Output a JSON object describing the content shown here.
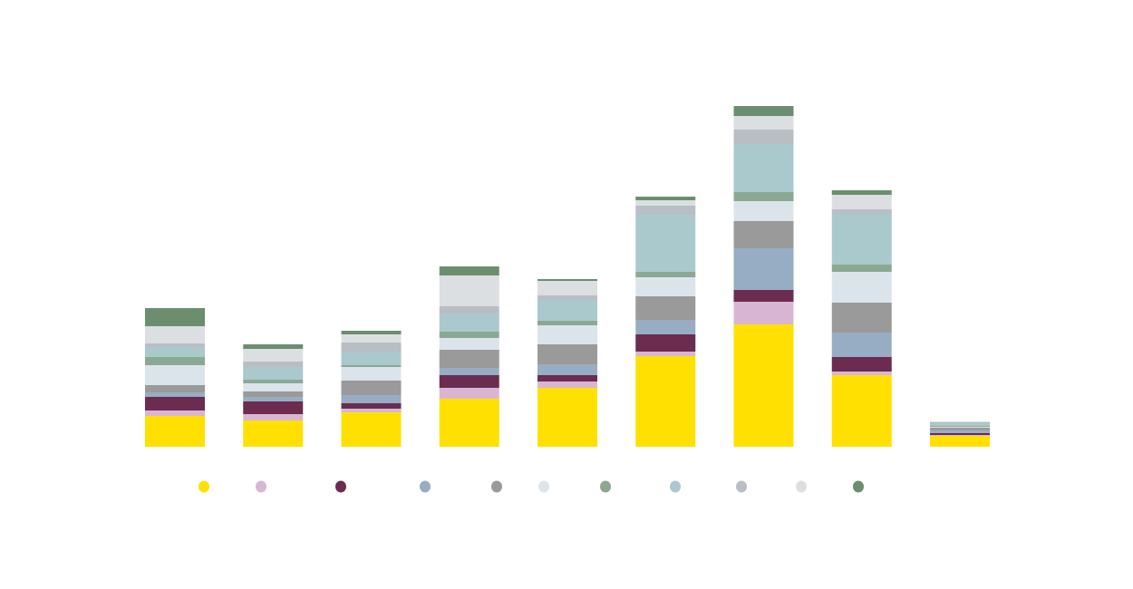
{
  "chart_data": {
    "type": "bar",
    "stacked": true,
    "title": "",
    "xlabel": "",
    "ylabel": "",
    "grid": false,
    "legend": "bottom",
    "categories": [
      "",
      "",
      "",
      "",
      "",
      "",
      "",
      "",
      ""
    ],
    "series": [
      {
        "color": "#FFE000",
        "values": [
          34,
          29,
          38,
          53,
          65,
          100,
          135,
          79,
          12
        ]
      },
      {
        "color": "#D8B6D3",
        "values": [
          6,
          7,
          4,
          12,
          7,
          5,
          25,
          4,
          1
        ]
      },
      {
        "color": "#6B2C4F",
        "values": [
          15,
          14,
          6,
          14,
          7,
          19,
          13,
          16,
          2
        ]
      },
      {
        "color": "#97ADC3",
        "values": [
          5,
          5,
          9,
          8,
          12,
          16,
          46,
          27,
          3
        ]
      },
      {
        "color": "#9A9A9A",
        "values": [
          8,
          6,
          16,
          20,
          22,
          26,
          30,
          33,
          3
        ]
      },
      {
        "color": "#DCE4EB",
        "values": [
          22,
          9,
          15,
          13,
          21,
          21,
          22,
          34,
          1
        ]
      },
      {
        "color": "#8BA893",
        "values": [
          9,
          4,
          2,
          7,
          5,
          6,
          10,
          8,
          1
        ]
      },
      {
        "color": "#AAC9CD",
        "values": [
          11,
          14,
          15,
          20,
          23,
          63,
          53,
          56,
          3
        ]
      },
      {
        "color": "#B8BEC3",
        "values": [
          4,
          6,
          10,
          8,
          5,
          10,
          16,
          5,
          1
        ]
      },
      {
        "color": "#DCDFE1",
        "values": [
          19,
          14,
          9,
          34,
          16,
          6,
          15,
          16,
          1
        ]
      },
      {
        "color": "#6B8F6E",
        "values": [
          20,
          5,
          4,
          10,
          2,
          4,
          11,
          5,
          0
        ]
      }
    ]
  }
}
